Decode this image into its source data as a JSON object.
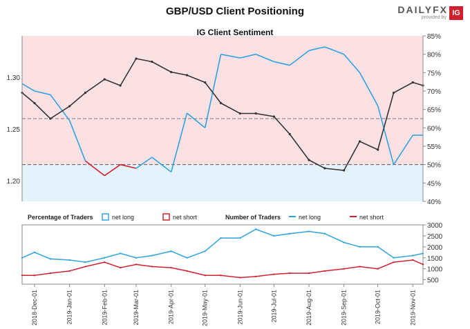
{
  "title": "GBP/USD Client Positioning",
  "subtitle": "IG Client Sentiment",
  "logo": {
    "brand": "DAILYFX",
    "provided_by": "provided by",
    "badge": "IG"
  },
  "colors": {
    "long": "#2ea3e0",
    "short": "#d0202e",
    "price": "#333333",
    "long_bg": "#e3f2fb",
    "short_bg": "#fbe1e3"
  },
  "chart_data": [
    {
      "type": "line",
      "name": "price-sentiment",
      "title": "IG Client Sentiment",
      "price_axis": {
        "ticks": [
          1.2,
          1.25,
          1.3
        ],
        "tick_labels": [
          "1.20",
          "1.25",
          "1.30"
        ],
        "range": [
          1.18,
          1.34
        ]
      },
      "pct_axis": {
        "ticks": [
          40,
          45,
          50,
          55,
          60,
          65,
          70,
          75,
          80,
          85
        ],
        "tick_labels": [
          "40%",
          "45%",
          "50%",
          "55%",
          "60%",
          "65%",
          "70%",
          "75%",
          "80%",
          "85%"
        ],
        "range": [
          40,
          85
        ]
      },
      "x": [
        "2018-11-20",
        "2018-12-01",
        "2018-12-15",
        "2019-01-01",
        "2019-01-15",
        "2019-02-01",
        "2019-02-15",
        "2019-03-01",
        "2019-03-15",
        "2019-04-01",
        "2019-04-15",
        "2019-05-01",
        "2019-05-15",
        "2019-06-01",
        "2019-06-15",
        "2019-07-01",
        "2019-07-15",
        "2019-08-01",
        "2019-08-15",
        "2019-09-01",
        "2019-09-15",
        "2019-10-01",
        "2019-10-15",
        "2019-11-01",
        "2019-11-10"
      ],
      "series": [
        {
          "name": "GBP/USD",
          "values": [
            1.285,
            1.275,
            1.26,
            1.272,
            1.285,
            1.298,
            1.292,
            1.318,
            1.315,
            1.305,
            1.302,
            1.295,
            1.275,
            1.265,
            1.265,
            1.262,
            1.245,
            1.22,
            1.212,
            1.21,
            1.238,
            1.23,
            1.285,
            1.295,
            1.292
          ]
        },
        {
          "name": "Percentage net long",
          "values": [
            72,
            70,
            69,
            62,
            51,
            47,
            50,
            49,
            52,
            48,
            64,
            60,
            80,
            79,
            80,
            78,
            77,
            81,
            82,
            80,
            75,
            66,
            50,
            58,
            58
          ]
        }
      ],
      "reference_lines": {
        "price": 1.26,
        "percent": 50
      }
    },
    {
      "type": "line",
      "name": "number-of-traders",
      "y_axis": {
        "ticks": [
          500,
          1000,
          1500,
          2000,
          2500,
          3000
        ],
        "tick_labels": [
          "500",
          "1000",
          "1500",
          "2000",
          "2500",
          "3000"
        ],
        "range": [
          300,
          3000
        ]
      },
      "x": [
        "2018-11-20",
        "2018-12-01",
        "2018-12-15",
        "2019-01-01",
        "2019-01-15",
        "2019-02-01",
        "2019-02-15",
        "2019-03-01",
        "2019-03-15",
        "2019-04-01",
        "2019-04-15",
        "2019-05-01",
        "2019-05-15",
        "2019-06-01",
        "2019-06-15",
        "2019-07-01",
        "2019-07-15",
        "2019-08-01",
        "2019-08-15",
        "2019-09-01",
        "2019-09-15",
        "2019-10-01",
        "2019-10-15",
        "2019-11-01",
        "2019-11-10"
      ],
      "series": [
        {
          "name": "net long",
          "values": [
            1500,
            1750,
            1450,
            1400,
            1300,
            1500,
            1700,
            1500,
            1600,
            1800,
            1500,
            1800,
            2400,
            2400,
            2800,
            2500,
            2600,
            2700,
            2600,
            2200,
            2000,
            2000,
            1500,
            1600,
            1700
          ]
        },
        {
          "name": "net short",
          "values": [
            700,
            700,
            800,
            900,
            1100,
            1300,
            1050,
            1200,
            1100,
            1050,
            900,
            700,
            700,
            600,
            650,
            750,
            800,
            800,
            900,
            1000,
            1100,
            1000,
            1300,
            1400,
            1200
          ]
        }
      ]
    }
  ],
  "x_tick_labels": [
    "2018-Dec-01",
    "2019-Jan-01",
    "2019-Feb-01",
    "2019-Mar-01",
    "2019-Apr-01",
    "2019-May-01",
    "2019-Jun-01",
    "2019-Jul-01",
    "2019-Aug-01",
    "2019-Sep-01",
    "2019-Oct-01",
    "2019-Nov-01"
  ],
  "legend": {
    "pct_heading": "Percentage of Traders",
    "pct_long": "net long",
    "pct_short": "net short",
    "num_heading": "Number of Traders",
    "num_long": "net long",
    "num_short": "net short"
  }
}
